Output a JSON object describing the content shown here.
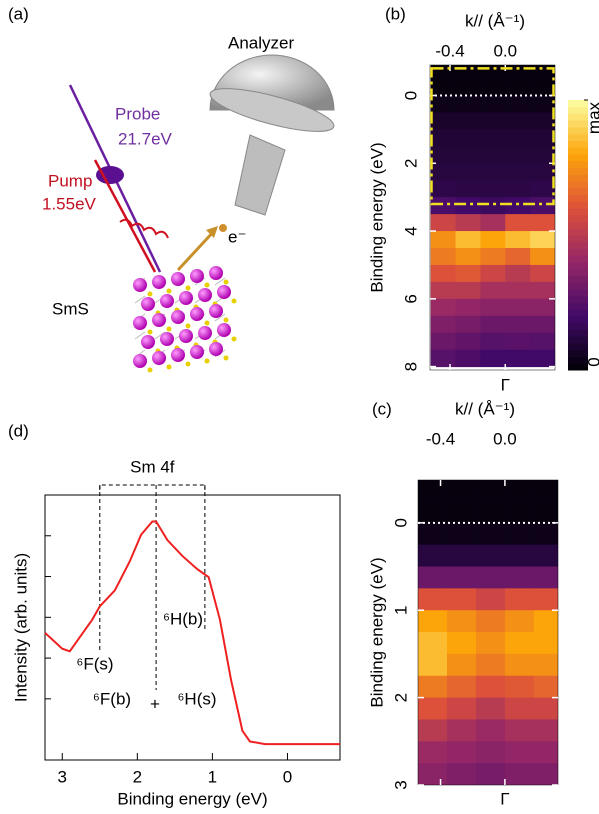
{
  "diagram": {
    "panel_label": "(a)",
    "analyzer": "Analyzer",
    "probe": "Probe",
    "probe_energy": "21.7eV",
    "pump": "Pump",
    "pump_energy": "1.55eV",
    "electron": "e⁻",
    "sample": "SmS"
  },
  "chart_data": [
    {
      "type": "heatmap",
      "panel_label": "(b)",
      "x_label": "k// (Å⁻¹)",
      "x_bottom_label": "Γ",
      "y_label": "Binding energy (eV)",
      "x": [
        -0.45,
        -0.27,
        -0.09,
        0.09,
        0.27
      ],
      "y": [
        -0.75,
        -0.25,
        0.25,
        0.75,
        1.25,
        1.75,
        2.25,
        2.75,
        3.25,
        3.75,
        4.25,
        4.75,
        5.25,
        5.75,
        6.25,
        6.75,
        7.25,
        7.75
      ],
      "z": [
        [
          0.02,
          0.02,
          0.02,
          0.02,
          0.02
        ],
        [
          0.02,
          0.02,
          0.02,
          0.02,
          0.02
        ],
        [
          0.04,
          0.04,
          0.04,
          0.04,
          0.04
        ],
        [
          0.08,
          0.08,
          0.08,
          0.08,
          0.08
        ],
        [
          0.1,
          0.1,
          0.1,
          0.1,
          0.1
        ],
        [
          0.11,
          0.11,
          0.11,
          0.11,
          0.11
        ],
        [
          0.12,
          0.12,
          0.12,
          0.12,
          0.12
        ],
        [
          0.14,
          0.13,
          0.13,
          0.13,
          0.14
        ],
        [
          0.22,
          0.2,
          0.18,
          0.2,
          0.22
        ],
        [
          0.55,
          0.5,
          0.45,
          0.6,
          0.6
        ],
        [
          0.75,
          0.85,
          0.8,
          0.85,
          0.9
        ],
        [
          0.7,
          0.75,
          0.7,
          0.65,
          0.75
        ],
        [
          0.6,
          0.62,
          0.55,
          0.5,
          0.55
        ],
        [
          0.5,
          0.5,
          0.45,
          0.45,
          0.45
        ],
        [
          0.42,
          0.4,
          0.38,
          0.38,
          0.38
        ],
        [
          0.35,
          0.33,
          0.3,
          0.3,
          0.3
        ],
        [
          0.3,
          0.28,
          0.25,
          0.26,
          0.25
        ],
        [
          0.25,
          0.23,
          0.2,
          0.2,
          0.2
        ]
      ],
      "xlim": [
        -0.545,
        0.36
      ],
      "ylim": [
        -0.9,
        8.1
      ],
      "xticks": [
        -0.4,
        {
          "value": 0,
          "label": "0.0"
        }
      ],
      "yticks": [
        0,
        2,
        4,
        6,
        8
      ],
      "colormap": [
        "#000004",
        "#420a68",
        "#932667",
        "#dd513a",
        "#fca50a",
        "#fcffa4"
      ],
      "clim": [
        0,
        1
      ],
      "colorbar_ticks": [
        0,
        {
          "value": 1,
          "label": "max"
        }
      ],
      "fermi_line": 0,
      "highlight_ylim": [
        -0.8,
        3.2
      ],
      "highlight_color": "#f0e020"
    },
    {
      "type": "heatmap",
      "panel_label": "(c)",
      "x_label": "k// (Å⁻¹)",
      "x_bottom_label": "Γ",
      "y_label": "Binding energy (eV)",
      "x": [
        -0.45,
        -0.27,
        -0.09,
        0.09,
        0.27
      ],
      "y": [
        -0.375,
        -0.125,
        0.125,
        0.375,
        0.625,
        0.875,
        1.125,
        1.375,
        1.625,
        1.875,
        2.125,
        2.375,
        2.625,
        2.875
      ],
      "z": [
        [
          0.02,
          0.02,
          0.02,
          0.02,
          0.02
        ],
        [
          0.02,
          0.02,
          0.02,
          0.02,
          0.02
        ],
        [
          0.04,
          0.04,
          0.04,
          0.04,
          0.04
        ],
        [
          0.12,
          0.12,
          0.12,
          0.12,
          0.12
        ],
        [
          0.3,
          0.3,
          0.3,
          0.3,
          0.3
        ],
        [
          0.6,
          0.6,
          0.55,
          0.6,
          0.6
        ],
        [
          0.8,
          0.75,
          0.7,
          0.75,
          0.8
        ],
        [
          0.85,
          0.8,
          0.75,
          0.8,
          0.8
        ],
        [
          0.85,
          0.75,
          0.7,
          0.75,
          0.75
        ],
        [
          0.7,
          0.65,
          0.6,
          0.62,
          0.65
        ],
        [
          0.6,
          0.55,
          0.5,
          0.55,
          0.55
        ],
        [
          0.5,
          0.45,
          0.42,
          0.45,
          0.45
        ],
        [
          0.42,
          0.4,
          0.38,
          0.4,
          0.4
        ],
        [
          0.38,
          0.35,
          0.33,
          0.35,
          0.35
        ]
      ],
      "xlim": [
        -0.54,
        0.33
      ],
      "ylim": [
        -0.49,
        3.0
      ],
      "xticks": [
        -0.4,
        {
          "value": 0,
          "label": "0.0"
        }
      ],
      "yticks": [
        0,
        1,
        2,
        3
      ],
      "colormap": [
        "#000004",
        "#420a68",
        "#932667",
        "#dd513a",
        "#fca50a",
        "#fcffa4"
      ],
      "clim": [
        0,
        1
      ],
      "fermi_line": 0
    },
    {
      "type": "line",
      "panel_label": "(d)",
      "x_label": "Binding energy (eV)",
      "y_label": "Intensity (arb. units)",
      "x": [
        3.23,
        3.0,
        2.9,
        2.6,
        2.5,
        2.3,
        2.1,
        1.95,
        1.8,
        1.75,
        1.6,
        1.4,
        1.2,
        1.05,
        0.9,
        0.75,
        0.6,
        0.5,
        0.3,
        0,
        -0.7
      ],
      "values": [
        0.48,
        0.42,
        0.41,
        0.53,
        0.58,
        0.64,
        0.75,
        0.85,
        0.9,
        0.9,
        0.83,
        0.77,
        0.72,
        0.69,
        0.53,
        0.3,
        0.11,
        0.07,
        0.06,
        0.06,
        0.06
      ],
      "color": "#ee2020",
      "xlim": [
        3.23,
        -0.7
      ],
      "ylim": [
        0,
        1
      ],
      "xticks": [
        3,
        2,
        1,
        0
      ],
      "bracket": {
        "label": "Sm 4f",
        "from": 2.5,
        "to": 1.1
      },
      "dashed_lines": [
        2.5,
        1.75,
        1.1
      ],
      "annotations": [
        "⁶F(s)",
        "⁶H(b)",
        "⁶F(b)",
        "+",
        "⁶H(s)"
      ]
    }
  ]
}
